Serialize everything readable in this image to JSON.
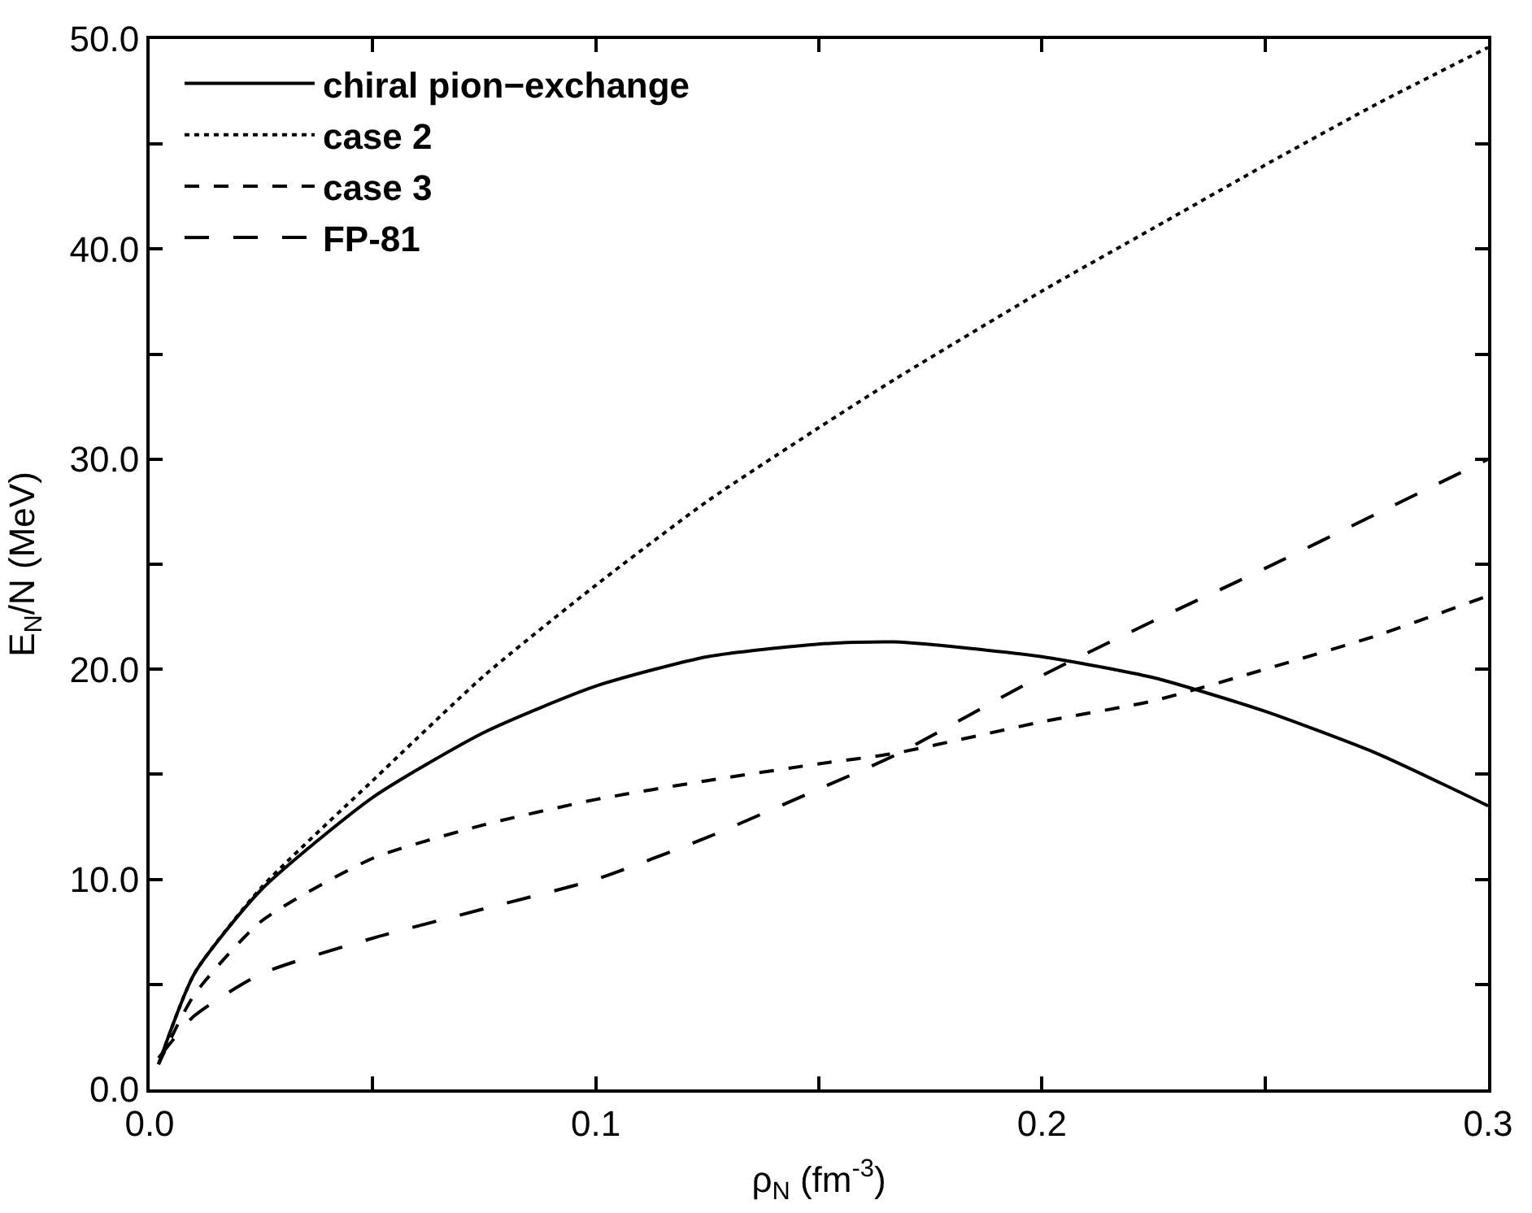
{
  "chart_data": {
    "type": "line",
    "xlabel": "ρ$_{N}$ (fm$^{-3}$)",
    "ylabel": "E$_{N}$/N (MeV)",
    "x": [
      0.002,
      0.01,
      0.025,
      0.05,
      0.075,
      0.1,
      0.125,
      0.15,
      0.167,
      0.2,
      0.225,
      0.25,
      0.275,
      0.3
    ],
    "series": [
      {
        "name": "chiral pion−exchange",
        "color": "#000000",
        "line_style": "solid",
        "values": [
          1.2,
          5.5,
          9.5,
          13.9,
          17.0,
          19.2,
          20.6,
          21.2,
          21.3,
          20.6,
          19.6,
          18.0,
          16.0,
          13.5
        ]
      },
      {
        "name": "case 2",
        "color": "#000000",
        "line_style": "dotted",
        "values": [
          1.2,
          5.5,
          9.6,
          14.7,
          19.7,
          24.0,
          28.0,
          31.5,
          33.8,
          38.0,
          41.0,
          44.0,
          46.9,
          49.6
        ]
      },
      {
        "name": "case 3",
        "color": "#000000",
        "line_style": "dashed",
        "values": [
          1.2,
          4.5,
          8.0,
          11.0,
          12.6,
          13.8,
          14.7,
          15.5,
          16.0,
          17.5,
          18.5,
          20.0,
          21.6,
          23.5
        ]
      },
      {
        "name": "FP-81",
        "color": "#000000",
        "line_style": "dashed",
        "values": [
          1.5,
          3.5,
          5.5,
          7.2,
          8.6,
          10.0,
          12.0,
          14.3,
          15.9,
          19.7,
          22.3,
          24.8,
          27.4,
          30.0
        ]
      }
    ],
    "xlim": [
      0,
      0.3
    ],
    "xticks": [
      {
        "value": 0,
        "label": "0.0"
      },
      {
        "value": 0.05,
        "label": null
      },
      0.1,
      {
        "value": 0.15,
        "label": null
      },
      0.2,
      {
        "value": 0.25,
        "label": null
      },
      0.3
    ],
    "ylim": [
      0,
      50
    ],
    "yticks": [
      {
        "value": 0,
        "label": "0.0"
      },
      {
        "value": 5,
        "label": null
      },
      {
        "value": 10,
        "label": "10.0"
      },
      {
        "value": 15,
        "label": null
      },
      {
        "value": 20,
        "label": "20.0"
      },
      {
        "value": 25,
        "label": null
      },
      {
        "value": 30,
        "label": "30.0"
      },
      {
        "value": 35,
        "label": null
      },
      {
        "value": 40,
        "label": "40.0"
      },
      {
        "value": 45,
        "label": null
      },
      {
        "value": 50,
        "label": "50.0"
      }
    ],
    "legend": "top left",
    "marker": "none"
  }
}
